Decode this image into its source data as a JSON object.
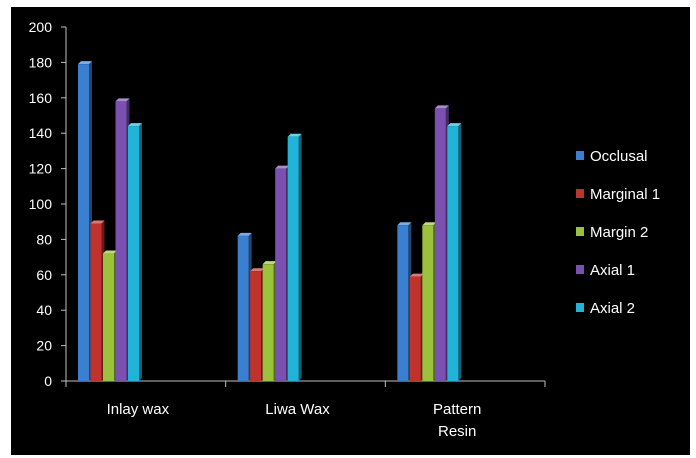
{
  "chart_data": {
    "type": "bar",
    "categories": [
      [
        "Inlay wax"
      ],
      [
        "Liwa Wax"
      ],
      [
        "Pattern",
        "Resin"
      ]
    ],
    "series": [
      {
        "name": "Occlusal",
        "color": "#3a7fd0",
        "values": [
          179,
          82,
          88
        ]
      },
      {
        "name": "Marginal 1",
        "color": "#c0322c",
        "values": [
          89,
          62,
          59
        ]
      },
      {
        "name": "Margin 2",
        "color": "#9bc23c",
        "values": [
          72,
          66,
          88
        ]
      },
      {
        "name": "Axial 1",
        "color": "#7a50b0",
        "values": [
          158,
          120,
          154
        ]
      },
      {
        "name": "Axial 2",
        "color": "#22b4d8",
        "values": [
          144,
          138,
          144
        ]
      }
    ],
    "yticks": [
      0,
      20,
      40,
      60,
      80,
      100,
      120,
      140,
      160,
      180,
      200
    ],
    "ylim": [
      0,
      200
    ],
    "grid": false,
    "legend": "right",
    "axis_color": "#c0c0c0",
    "background": "#000000"
  }
}
